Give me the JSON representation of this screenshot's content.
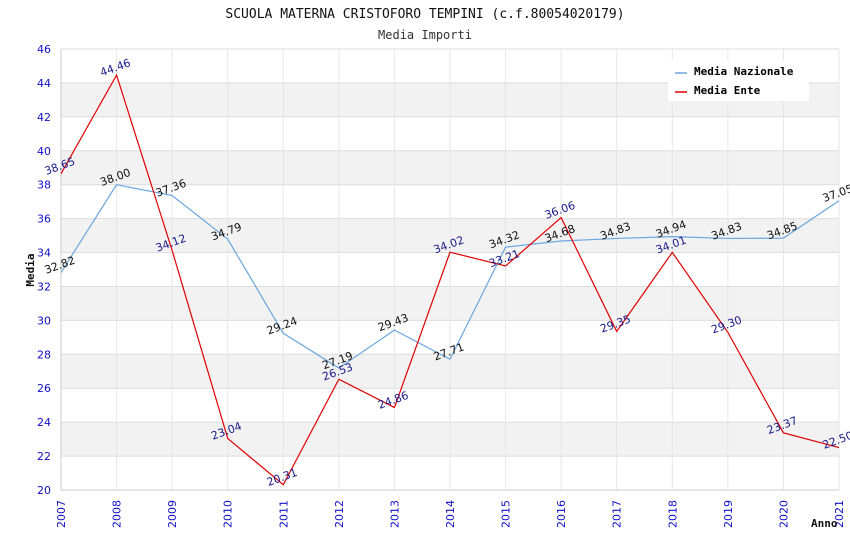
{
  "chart_data": {
    "type": "line",
    "title": "SCUOLA MATERNA CRISTOFORO TEMPINI (c.f.80054020179)",
    "subtitle": "Media Importi",
    "xlabel": "Anno",
    "ylabel": "Media",
    "ylim": [
      20,
      46
    ],
    "yticks": [
      20,
      22,
      24,
      26,
      28,
      30,
      32,
      34,
      36,
      38,
      40,
      42,
      44,
      46
    ],
    "categories": [
      "2007",
      "2008",
      "2009",
      "2010",
      "2011",
      "2012",
      "2013",
      "2014",
      "2015",
      "2016",
      "2017",
      "2018",
      "2019",
      "2020",
      "2021"
    ],
    "legend_position": "top-right",
    "series": [
      {
        "name": "Media Nazionale",
        "color": "#6aa6e0",
        "label_color": "#111111",
        "values": [
          32.82,
          38.0,
          37.36,
          34.79,
          29.24,
          27.19,
          29.43,
          27.71,
          34.32,
          34.68,
          34.83,
          34.94,
          34.83,
          34.85,
          37.05
        ],
        "labels": [
          "32.82",
          "38.00",
          "37.36",
          "34.79",
          "29.24",
          "27.19",
          "29.43",
          "27.71",
          "34.32",
          "34.68",
          "34.83",
          "34.94",
          "34.83",
          "34.85",
          "37.05"
        ]
      },
      {
        "name": "Media Ente",
        "color": "#e00000",
        "label_color": "#1a1a8c",
        "values": [
          38.65,
          44.46,
          34.12,
          23.04,
          20.31,
          26.53,
          24.86,
          34.02,
          33.21,
          36.06,
          29.35,
          34.01,
          29.3,
          23.37,
          22.5
        ],
        "labels": [
          "38.65",
          "44.46",
          "34.12",
          "23.04",
          "20.31",
          "26.53",
          "24.86",
          "34.02",
          "33.21",
          "36.06",
          "29.35",
          "34.01",
          "29.30",
          "23.37",
          "22.50"
        ]
      }
    ]
  }
}
